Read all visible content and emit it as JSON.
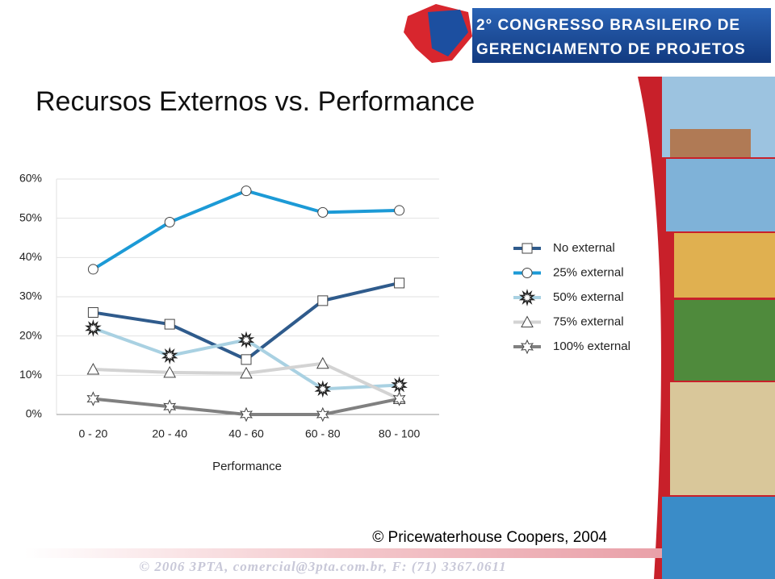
{
  "header": {
    "line1": "2° CONGRESSO BRASILEIRO DE",
    "line2": "GERENCIAMENTO DE PROJETOS"
  },
  "slide_title": "Recursos Externos vs. Performance",
  "chart_data": {
    "type": "line",
    "x_label": "Performance",
    "categories": [
      "0 - 20",
      "20 - 40",
      "40 - 60",
      "60 - 80",
      "80 - 100"
    ],
    "series": [
      {
        "name": "No external",
        "color": "#2f5b8c",
        "marker": "square",
        "values": [
          26,
          23,
          14,
          29,
          33.5
        ]
      },
      {
        "name": "25% external",
        "color": "#1c9ad6",
        "marker": "circle",
        "values": [
          37,
          49,
          57,
          51.5,
          52
        ]
      },
      {
        "name": "50% external",
        "color": "#a9d1e2",
        "marker": "burst",
        "values": [
          22,
          15,
          19,
          6.5,
          7.5
        ]
      },
      {
        "name": "75% external",
        "color": "#d3d3d3",
        "marker": "triangle",
        "values": [
          11.5,
          10.7,
          10.5,
          13,
          4
        ]
      },
      {
        "name": "100% external",
        "color": "#808080",
        "marker": "star",
        "values": [
          4,
          2,
          0,
          0,
          4
        ]
      }
    ],
    "ylim": [
      0,
      60
    ],
    "yticks": [
      {
        "value": 0,
        "label": "0%"
      },
      {
        "value": 10,
        "label": "10%"
      },
      {
        "value": 20,
        "label": "20%"
      },
      {
        "value": 30,
        "label": "30%"
      },
      {
        "value": 40,
        "label": "40%"
      },
      {
        "value": 50,
        "label": "50%"
      },
      {
        "value": 60,
        "label": "60%"
      }
    ],
    "grid": true,
    "legend": "right"
  },
  "source": "© Pricewaterhouse Coopers, 2004",
  "footer": "© 2006 3PTA, comercial@3pta.com.br, F: (71) 3367.0611"
}
